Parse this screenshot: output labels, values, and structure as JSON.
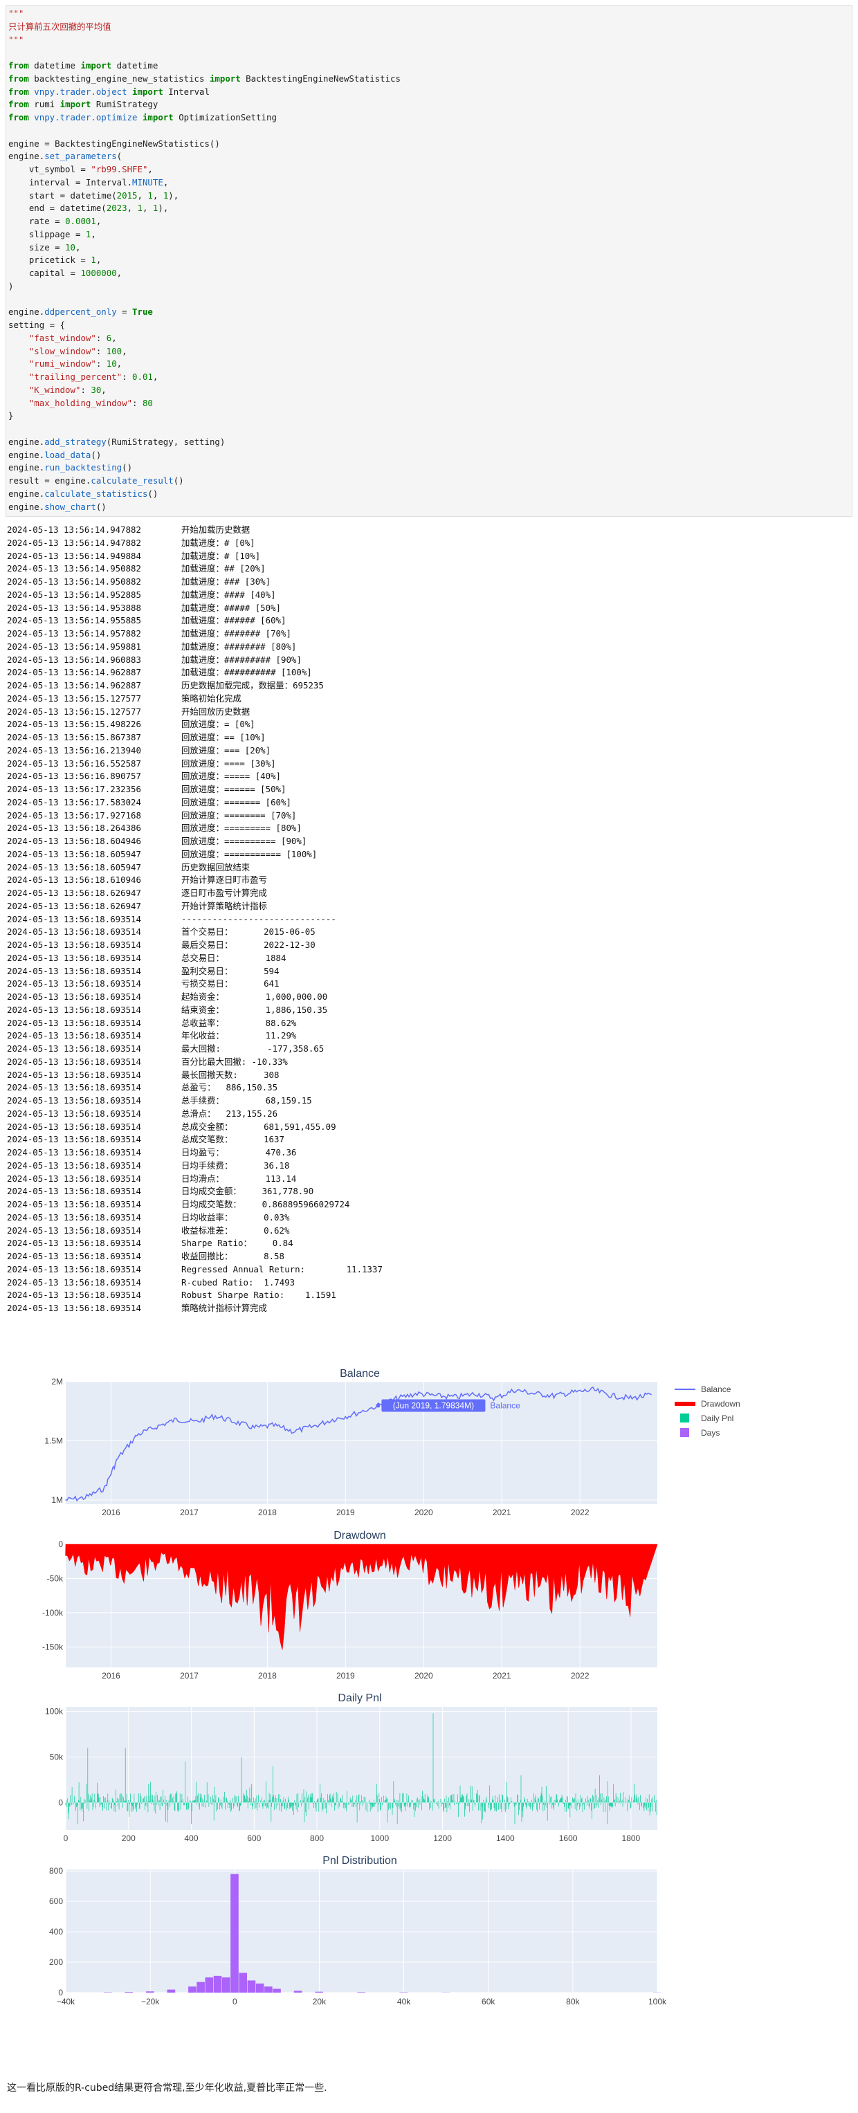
{
  "code": {
    "lines": [
      [
        [
          "\"\"\"",
          "s"
        ]
      ],
      [
        [
          "只计算前五次回撤的平均值",
          "s"
        ]
      ],
      [
        [
          "\"\"\"",
          "s"
        ]
      ],
      [],
      [
        [
          "from",
          "k"
        ],
        [
          " datetime ",
          ""
        ],
        [
          "import",
          "k"
        ],
        [
          " datetime",
          ""
        ]
      ],
      [
        [
          "from",
          "k"
        ],
        [
          " backtesting_engine_new_statistics ",
          ""
        ],
        [
          "import",
          "k"
        ],
        [
          " BacktestingEngineNewStatistics",
          ""
        ]
      ],
      [
        [
          "from",
          "k"
        ],
        [
          " vnpy.trader.object ",
          "m"
        ],
        [
          "import",
          "k"
        ],
        [
          " Interval",
          ""
        ]
      ],
      [
        [
          "from",
          "k"
        ],
        [
          " rumi ",
          ""
        ],
        [
          "import",
          "k"
        ],
        [
          " RumiStrategy",
          ""
        ]
      ],
      [
        [
          "from",
          "k"
        ],
        [
          " vnpy.trader.optimize ",
          "m"
        ],
        [
          "import",
          "k"
        ],
        [
          " OptimizationSetting",
          ""
        ]
      ],
      [],
      [
        [
          "engine = BacktestingEngineNewStatistics()",
          ""
        ]
      ],
      [
        [
          "engine.",
          ""
        ],
        [
          "set_parameters",
          "m"
        ],
        [
          "(",
          ""
        ]
      ],
      [
        [
          "    vt_symbol = ",
          ""
        ],
        [
          "\"rb99.SHFE\"",
          "s"
        ],
        [
          ",",
          ""
        ]
      ],
      [
        [
          "    interval = Interval.",
          ""
        ],
        [
          "MINUTE",
          "m"
        ],
        [
          ",",
          ""
        ]
      ],
      [
        [
          "    start = datetime(",
          ""
        ],
        [
          "2015",
          "n"
        ],
        [
          ", ",
          ""
        ],
        [
          "1",
          "n"
        ],
        [
          ", ",
          ""
        ],
        [
          "1",
          "n"
        ],
        [
          "),",
          ""
        ]
      ],
      [
        [
          "    end = datetime(",
          ""
        ],
        [
          "2023",
          "n"
        ],
        [
          ", ",
          ""
        ],
        [
          "1",
          "n"
        ],
        [
          ", ",
          ""
        ],
        [
          "1",
          "n"
        ],
        [
          "),",
          ""
        ]
      ],
      [
        [
          "    rate = ",
          ""
        ],
        [
          "0.0001",
          "n"
        ],
        [
          ",",
          ""
        ]
      ],
      [
        [
          "    slippage = ",
          ""
        ],
        [
          "1",
          "n"
        ],
        [
          ",",
          ""
        ]
      ],
      [
        [
          "    size = ",
          ""
        ],
        [
          "10",
          "n"
        ],
        [
          ",",
          ""
        ]
      ],
      [
        [
          "    pricetick = ",
          ""
        ],
        [
          "1",
          "n"
        ],
        [
          ",",
          ""
        ]
      ],
      [
        [
          "    capital = ",
          ""
        ],
        [
          "1000000",
          "n"
        ],
        [
          ",",
          ""
        ]
      ],
      [
        [
          ")",
          ""
        ]
      ],
      [],
      [
        [
          "engine.",
          ""
        ],
        [
          "ddpercent_only",
          "m"
        ],
        [
          " = ",
          ""
        ],
        [
          "True",
          "k"
        ]
      ],
      [
        [
          "setting = {",
          ""
        ]
      ],
      [
        [
          "    ",
          ""
        ],
        [
          "\"fast_window\"",
          "s"
        ],
        [
          ": ",
          ""
        ],
        [
          "6",
          "n"
        ],
        [
          ",",
          ""
        ]
      ],
      [
        [
          "    ",
          ""
        ],
        [
          "\"slow_window\"",
          "s"
        ],
        [
          ": ",
          ""
        ],
        [
          "100",
          "n"
        ],
        [
          ",",
          ""
        ]
      ],
      [
        [
          "    ",
          ""
        ],
        [
          "\"rumi_window\"",
          "s"
        ],
        [
          ": ",
          ""
        ],
        [
          "10",
          "n"
        ],
        [
          ",",
          ""
        ]
      ],
      [
        [
          "    ",
          ""
        ],
        [
          "\"trailing_percent\"",
          "s"
        ],
        [
          ": ",
          ""
        ],
        [
          "0.01",
          "n"
        ],
        [
          ",",
          ""
        ]
      ],
      [
        [
          "    ",
          ""
        ],
        [
          "\"K_window\"",
          "s"
        ],
        [
          ": ",
          ""
        ],
        [
          "30",
          "n"
        ],
        [
          ",",
          ""
        ]
      ],
      [
        [
          "    ",
          ""
        ],
        [
          "\"max_holding_window\"",
          "s"
        ],
        [
          ": ",
          ""
        ],
        [
          "80",
          "n"
        ]
      ],
      [
        [
          "}",
          ""
        ]
      ],
      [],
      [
        [
          "engine.",
          ""
        ],
        [
          "add_strategy",
          "m"
        ],
        [
          "(RumiStrategy, setting)",
          ""
        ]
      ],
      [
        [
          "engine.",
          ""
        ],
        [
          "load_data",
          "m"
        ],
        [
          "()",
          ""
        ]
      ],
      [
        [
          "engine.",
          ""
        ],
        [
          "run_backtesting",
          "m"
        ],
        [
          "()",
          ""
        ]
      ],
      [
        [
          "result = engine.",
          ""
        ],
        [
          "calculate_result",
          "m"
        ],
        [
          "()",
          ""
        ]
      ],
      [
        [
          "engine.",
          ""
        ],
        [
          "calculate_statistics",
          "m"
        ],
        [
          "()",
          ""
        ]
      ],
      [
        [
          "engine.",
          ""
        ],
        [
          "show_chart",
          "m"
        ],
        [
          "()",
          ""
        ]
      ]
    ]
  },
  "log": [
    [
      "2024-05-13 13:56:14.947882",
      "开始加载历史数据"
    ],
    [
      "2024-05-13 13:56:14.947882",
      "加载进度：# [0%]"
    ],
    [
      "2024-05-13 13:56:14.949884",
      "加载进度：# [10%]"
    ],
    [
      "2024-05-13 13:56:14.950882",
      "加载进度：## [20%]"
    ],
    [
      "2024-05-13 13:56:14.950882",
      "加载进度：### [30%]"
    ],
    [
      "2024-05-13 13:56:14.952885",
      "加载进度：#### [40%]"
    ],
    [
      "2024-05-13 13:56:14.953888",
      "加载进度：##### [50%]"
    ],
    [
      "2024-05-13 13:56:14.955885",
      "加载进度：###### [60%]"
    ],
    [
      "2024-05-13 13:56:14.957882",
      "加载进度：####### [70%]"
    ],
    [
      "2024-05-13 13:56:14.959881",
      "加载进度：######## [80%]"
    ],
    [
      "2024-05-13 13:56:14.960883",
      "加载进度：######### [90%]"
    ],
    [
      "2024-05-13 13:56:14.962887",
      "加载进度：########## [100%]"
    ],
    [
      "2024-05-13 13:56:14.962887",
      "历史数据加载完成，数据量：695235"
    ],
    [
      "2024-05-13 13:56:15.127577",
      "策略初始化完成"
    ],
    [
      "2024-05-13 13:56:15.127577",
      "开始回放历史数据"
    ],
    [
      "2024-05-13 13:56:15.498226",
      "回放进度：= [0%]"
    ],
    [
      "2024-05-13 13:56:15.867387",
      "回放进度：== [10%]"
    ],
    [
      "2024-05-13 13:56:16.213940",
      "回放进度：=== [20%]"
    ],
    [
      "2024-05-13 13:56:16.552587",
      "回放进度：==== [30%]"
    ],
    [
      "2024-05-13 13:56:16.890757",
      "回放进度：===== [40%]"
    ],
    [
      "2024-05-13 13:56:17.232356",
      "回放进度：====== [50%]"
    ],
    [
      "2024-05-13 13:56:17.583024",
      "回放进度：======= [60%]"
    ],
    [
      "2024-05-13 13:56:17.927168",
      "回放进度：======== [70%]"
    ],
    [
      "2024-05-13 13:56:18.264386",
      "回放进度：========= [80%]"
    ],
    [
      "2024-05-13 13:56:18.604946",
      "回放进度：========== [90%]"
    ],
    [
      "2024-05-13 13:56:18.605947",
      "回放进度：=========== [100%]"
    ],
    [
      "2024-05-13 13:56:18.605947",
      "历史数据回放结束"
    ],
    [
      "2024-05-13 13:56:18.610946",
      "开始计算逐日盯市盈亏"
    ],
    [
      "2024-05-13 13:56:18.626947",
      "逐日盯市盈亏计算完成"
    ],
    [
      "2024-05-13 13:56:18.626947",
      "开始计算策略统计指标"
    ],
    [
      "2024-05-13 13:56:18.693514",
      "------------------------------"
    ],
    [
      "2024-05-13 13:56:18.693514",
      "首个交易日：      2015-06-05"
    ],
    [
      "2024-05-13 13:56:18.693514",
      "最后交易日：      2022-12-30"
    ],
    [
      "2024-05-13 13:56:18.693514",
      "总交易日：        1884"
    ],
    [
      "2024-05-13 13:56:18.693514",
      "盈利交易日：      594"
    ],
    [
      "2024-05-13 13:56:18.693514",
      "亏损交易日：      641"
    ],
    [
      "2024-05-13 13:56:18.693514",
      "起始资金：        1,000,000.00"
    ],
    [
      "2024-05-13 13:56:18.693514",
      "结束资金：        1,886,150.35"
    ],
    [
      "2024-05-13 13:56:18.693514",
      "总收益率：        88.62%"
    ],
    [
      "2024-05-13 13:56:18.693514",
      "年化收益：        11.29%"
    ],
    [
      "2024-05-13 13:56:18.693514",
      "最大回撤:         -177,358.65"
    ],
    [
      "2024-05-13 13:56:18.693514",
      "百分比最大回撤: -10.33%"
    ],
    [
      "2024-05-13 13:56:18.693514",
      "最长回撤天数:     308"
    ],
    [
      "2024-05-13 13:56:18.693514",
      "总盈亏：  886,150.35"
    ],
    [
      "2024-05-13 13:56:18.693514",
      "总手续费：        68,159.15"
    ],
    [
      "2024-05-13 13:56:18.693514",
      "总滑点：  213,155.26"
    ],
    [
      "2024-05-13 13:56:18.693514",
      "总成交金额：      681,591,455.09"
    ],
    [
      "2024-05-13 13:56:18.693514",
      "总成交笔数：      1637"
    ],
    [
      "2024-05-13 13:56:18.693514",
      "日均盈亏：        470.36"
    ],
    [
      "2024-05-13 13:56:18.693514",
      "日均手续费：      36.18"
    ],
    [
      "2024-05-13 13:56:18.693514",
      "日均滑点：        113.14"
    ],
    [
      "2024-05-13 13:56:18.693514",
      "日均成交金额：    361,778.90"
    ],
    [
      "2024-05-13 13:56:18.693514",
      "日均成交笔数：    0.868895966029724"
    ],
    [
      "2024-05-13 13:56:18.693514",
      "日均收益率：      0.03%"
    ],
    [
      "2024-05-13 13:56:18.693514",
      "收益标准差：      0.62%"
    ],
    [
      "2024-05-13 13:56:18.693514",
      "Sharpe Ratio：    0.84"
    ],
    [
      "2024-05-13 13:56:18.693514",
      "收益回撤比：      8.58"
    ],
    [
      "2024-05-13 13:56:18.693514",
      "Regressed Annual Return:        11.1337"
    ],
    [
      "2024-05-13 13:56:18.693514",
      "R-cubed Ratio:  1.7493"
    ],
    [
      "2024-05-13 13:56:18.693514",
      "Robust Sharpe Ratio:    1.1591"
    ],
    [
      "2024-05-13 13:56:18.693514",
      "策略统计指标计算完成"
    ]
  ],
  "chart_data": [
    {
      "type": "line",
      "title": "Balance",
      "series_name": "Balance",
      "x": [
        "2015-06",
        "2015-09",
        "2015-12",
        "2016-02",
        "2016-05",
        "2016-08",
        "2016-11",
        "2017-02",
        "2017-05",
        "2017-08",
        "2017-11",
        "2018-02",
        "2018-05",
        "2018-08",
        "2018-11",
        "2019-02",
        "2019-06",
        "2019-09",
        "2019-12",
        "2020-03",
        "2020-06",
        "2020-09",
        "2020-12",
        "2021-03",
        "2021-06",
        "2021-09",
        "2021-12",
        "2022-03",
        "2022-06",
        "2022-09",
        "2022-12"
      ],
      "values": [
        1.0,
        1.02,
        1.1,
        1.35,
        1.55,
        1.62,
        1.68,
        1.66,
        1.71,
        1.66,
        1.61,
        1.63,
        1.58,
        1.62,
        1.68,
        1.72,
        1.7983,
        1.86,
        1.9,
        1.88,
        1.87,
        1.9,
        1.86,
        1.93,
        1.9,
        1.88,
        1.91,
        1.93,
        1.88,
        1.86,
        1.89
      ],
      "yticks": [
        "1M",
        "1.5M",
        "2M"
      ],
      "xticks": [
        "2016",
        "2017",
        "2018",
        "2019",
        "2020",
        "2021",
        "2022"
      ],
      "hover_label": "(Jun 2019, 1.79834M)",
      "hover_series": "Balance",
      "color": "#636efa"
    },
    {
      "type": "area",
      "title": "Drawdown",
      "series_name": "Drawdown",
      "x": [
        "2015-06",
        "2015-09",
        "2015-12",
        "2016-03",
        "2016-06",
        "2016-09",
        "2016-12",
        "2017-03",
        "2017-06",
        "2017-09",
        "2017-12",
        "2018-03",
        "2018-06",
        "2018-09",
        "2018-12",
        "2019-03",
        "2019-06",
        "2019-09",
        "2019-12",
        "2020-03",
        "2020-06",
        "2020-09",
        "2020-12",
        "2021-03",
        "2021-06",
        "2021-09",
        "2021-12",
        "2022-03",
        "2022-06",
        "2022-09",
        "2022-12"
      ],
      "values": [
        -20000,
        -50000,
        -40000,
        -60000,
        -55000,
        -30000,
        -50000,
        -70000,
        -90000,
        -100000,
        -120000,
        -160000,
        -150000,
        -110000,
        -70000,
        -60000,
        -40000,
        -50000,
        -30000,
        -80000,
        -60000,
        -90000,
        -110000,
        -70000,
        -90000,
        -120000,
        -80000,
        -60000,
        -100000,
        -110000,
        -50000
      ],
      "yticks": [
        "0",
        "-50k",
        "-100k",
        "-150k"
      ],
      "xticks": [
        "2016",
        "2017",
        "2018",
        "2019",
        "2020",
        "2021",
        "2022"
      ],
      "color": "#ff0000"
    },
    {
      "type": "bar",
      "title": "Daily Pnl",
      "series_name": "Daily Pnl",
      "xlim": [
        0,
        1884
      ],
      "ylim": [
        -30000,
        105000
      ],
      "peaks": [
        [
          70,
          60000
        ],
        [
          190,
          60000
        ],
        [
          380,
          45000
        ],
        [
          560,
          50000
        ],
        [
          660,
          40000
        ],
        [
          1170,
          98000
        ],
        [
          1450,
          30000
        ],
        [
          1700,
          30000
        ]
      ],
      "yticks": [
        "0",
        "50k",
        "100k"
      ],
      "xticks": [
        "0",
        "200",
        "400",
        "600",
        "800",
        "1000",
        "1200",
        "1400",
        "1600",
        "1800"
      ],
      "color": "#00cc96"
    },
    {
      "type": "bar",
      "title": "Pnl Distribution",
      "series_name": "Days",
      "xlim": [
        -40000,
        100000
      ],
      "ylim": [
        0,
        810
      ],
      "bins": [
        [
          -30000,
          2
        ],
        [
          -25000,
          4
        ],
        [
          -20000,
          8
        ],
        [
          -15000,
          20
        ],
        [
          -10000,
          40
        ],
        [
          -8000,
          70
        ],
        [
          -6000,
          100
        ],
        [
          -4000,
          110
        ],
        [
          -2000,
          100
        ],
        [
          0,
          780
        ],
        [
          2000,
          130
        ],
        [
          4000,
          80
        ],
        [
          6000,
          60
        ],
        [
          8000,
          40
        ],
        [
          10000,
          25
        ],
        [
          15000,
          12
        ],
        [
          20000,
          6
        ],
        [
          30000,
          3
        ],
        [
          40000,
          2
        ],
        [
          50000,
          1
        ],
        [
          100000,
          1
        ]
      ],
      "yticks": [
        "0",
        "200",
        "400",
        "600",
        "800"
      ],
      "xticks": [
        "−40k",
        "−20k",
        "0",
        "20k",
        "40k",
        "60k",
        "80k",
        "100k"
      ],
      "color": "#ab63fa"
    }
  ],
  "legend": [
    {
      "label": "Balance",
      "color": "#636efa",
      "kind": "line"
    },
    {
      "label": "Drawdown",
      "color": "#ff0000",
      "kind": "line"
    },
    {
      "label": "Daily Pnl",
      "color": "#00cc96",
      "kind": "square"
    },
    {
      "label": "Days",
      "color": "#ab63fa",
      "kind": "square"
    }
  ],
  "footer_text": "这一看比原版的R-cubed结果更符合常理,至少年化收益,夏普比率正常一些."
}
